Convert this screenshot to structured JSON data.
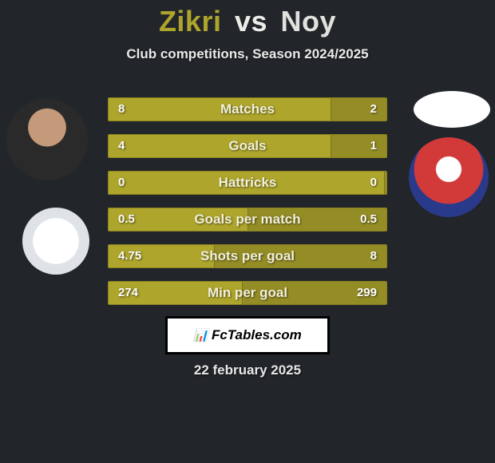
{
  "title": {
    "p1": "Zikri",
    "vs": "vs",
    "p2": "Noy"
  },
  "subtitle": "Club competitions, Season 2024/2025",
  "date": "22 february 2025",
  "brand": "FcTables.com",
  "colors": {
    "bar_fill": "#aea52c",
    "bar_border": "#8c841f",
    "background": "#22252a",
    "title_p1": "#aea52c",
    "title_vs": "#edede8",
    "title_p2": "#e1e1dd"
  },
  "rows": [
    {
      "label": "Matches",
      "left": "8",
      "right": "2",
      "right_pct": 20
    },
    {
      "label": "Goals",
      "left": "4",
      "right": "1",
      "right_pct": 20
    },
    {
      "label": "Hattricks",
      "left": "0",
      "right": "0",
      "right_pct": 1
    },
    {
      "label": "Goals per match",
      "left": "0.5",
      "right": "0.5",
      "right_pct": 50
    },
    {
      "label": "Shots per goal",
      "left": "4.75",
      "right": "8",
      "right_pct": 62
    },
    {
      "label": "Min per goal",
      "left": "274",
      "right": "299",
      "right_pct": 52
    }
  ]
}
